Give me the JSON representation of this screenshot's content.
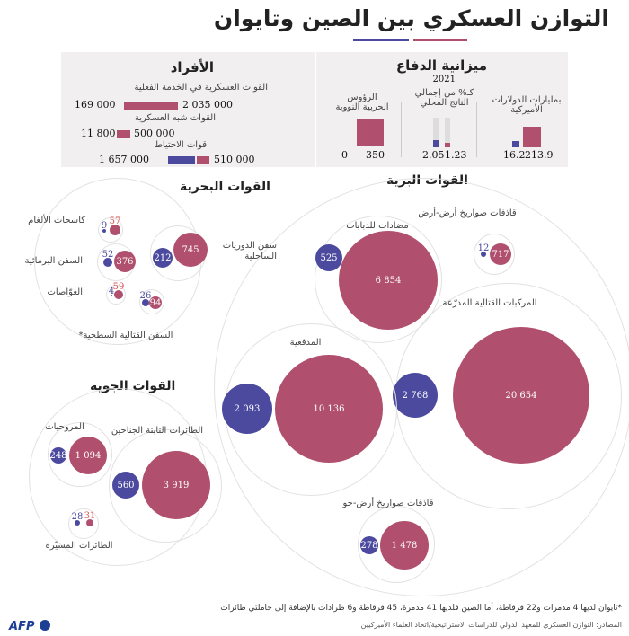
{
  "title": "التوازن العسكري بين الصين وتايوان",
  "colors": {
    "china": "#b0506e",
    "taiwan": "#4b4a9f",
    "panel": "#f1eff0"
  },
  "personnel": {
    "heading": "الأفراد",
    "rows": [
      {
        "label": "القوات العسكرية في الخدمة الفعلية",
        "china": "2 035 000",
        "taiwan": "169 000"
      },
      {
        "label": "القوات شبه العسكرية",
        "china": "500 000",
        "taiwan": "11 800"
      },
      {
        "label": "قوات الاحتياط",
        "china": "510 000",
        "taiwan": "1 657 000"
      }
    ]
  },
  "budget": {
    "heading": "ميزانية الدفاع",
    "year": "2021",
    "usd": {
      "label": "بمليارات الدولارات الأميركية",
      "china": "213.9",
      "taiwan": "16.2"
    },
    "gdp": {
      "label": "كـ% من إجمالي الناتج المحلي",
      "china": "1.23",
      "taiwan": "2.05"
    },
    "nuclear": {
      "label": "الرؤوس الحربية النووية",
      "china": "350",
      "taiwan": "0"
    }
  },
  "chart_data": {
    "type": "bubble",
    "series": [
      "China",
      "Taiwan"
    ],
    "land": {
      "heading": "القوات البرية",
      "items": [
        {
          "label": "قاذفات صواريخ أرض-أرض",
          "china": "717",
          "taiwan": "12"
        },
        {
          "label": "مضادات للدبابات",
          "china": "6 854",
          "taiwan": "525"
        },
        {
          "label": "المركبات القتالية المدرّعة",
          "china": "20 654",
          "taiwan": "2 768"
        },
        {
          "label": "المدفعية",
          "china": "10 136",
          "taiwan": "2 093"
        },
        {
          "label": "قاذفات صواريخ أرض-جو",
          "china": "1 478",
          "taiwan": "278"
        }
      ]
    },
    "naval": {
      "heading": "القوات البحرية",
      "items": [
        {
          "label": "كاسحات الألغام",
          "china": "57",
          "taiwan": "9"
        },
        {
          "label": "السفن البرمائية",
          "china": "376",
          "taiwan": "52"
        },
        {
          "label": "الغوّاصات",
          "china": "59",
          "taiwan": "4"
        },
        {
          "label": "السفن القتالية السطحية*",
          "china": "94",
          "taiwan": "26"
        },
        {
          "label": "سفن الدوريات الساحلية",
          "china": "745",
          "taiwan": "212"
        }
      ]
    },
    "air": {
      "heading": "القوات الجوية",
      "items": [
        {
          "label": "المروحيات",
          "china": "1 094",
          "taiwan": "248"
        },
        {
          "label": "الطائرات الثابتة الجناحين",
          "china": "3 919",
          "taiwan": "560"
        },
        {
          "label": "الطائرات المسيّرة",
          "china": "31",
          "taiwan": "28"
        }
      ]
    }
  },
  "footnote": "*تايوان لديها 4 مدمرات و22 فرقاطة، أما الصين فلديها 41 مدمرة، 45 فرقاطة و6 طرادات بالإضافة إلى حاملتي طائرات",
  "source": "المصادر: التوازن العسكري للمعهد الدولي للدراسات الاستراتيجية/اتحاد العلماء الأميركيين",
  "logo": "AFP"
}
